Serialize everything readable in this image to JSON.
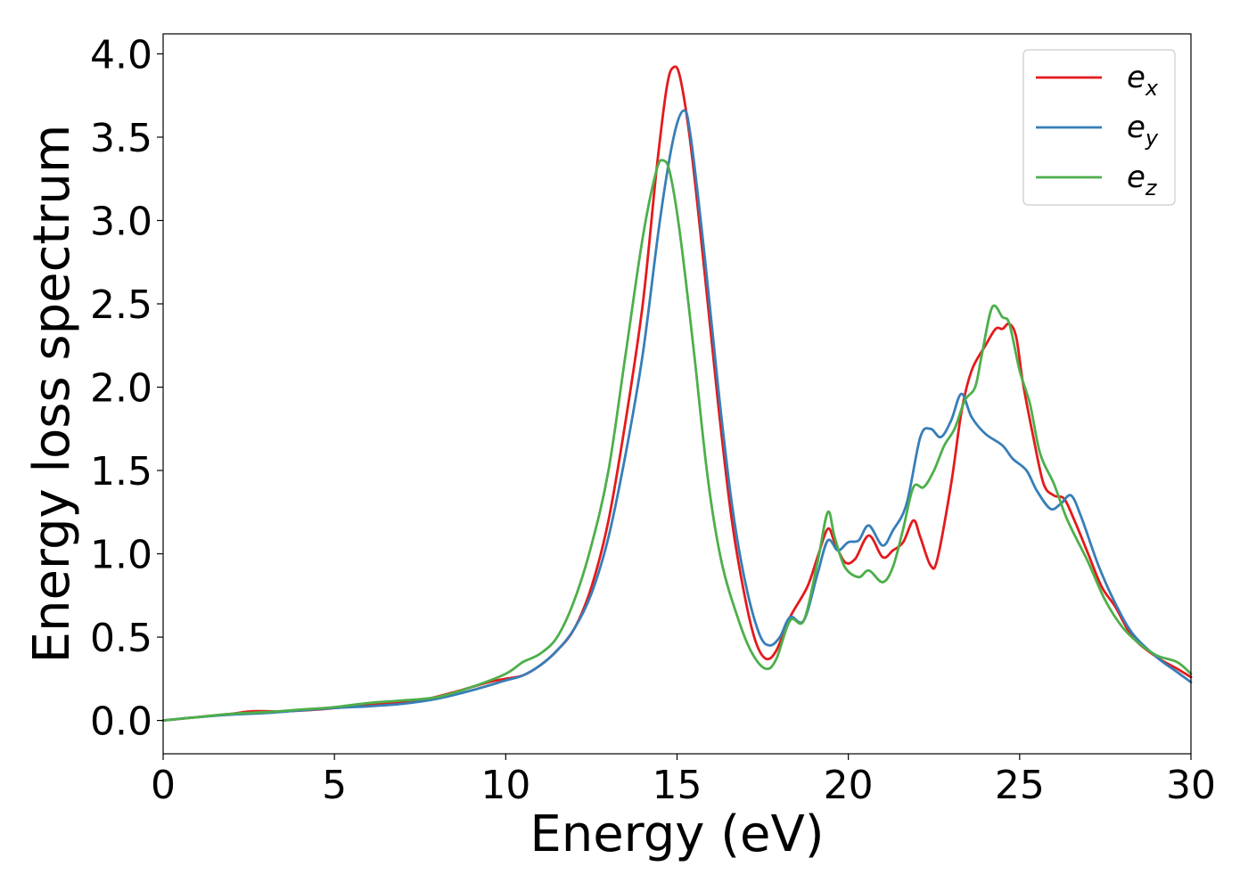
{
  "chart_data": {
    "type": "line",
    "title": "",
    "xlabel": "Energy (eV)",
    "ylabel": "Energy loss spectrum",
    "xlim": [
      0,
      30
    ],
    "ylim": [
      -0.2,
      4.12
    ],
    "xticks": [
      0,
      5,
      10,
      15,
      20,
      25,
      30
    ],
    "yticks": [
      0.0,
      0.5,
      1.0,
      1.5,
      2.0,
      2.5,
      3.0,
      3.5,
      4.0
    ],
    "xtick_labels": [
      "0",
      "5",
      "10",
      "15",
      "20",
      "25",
      "30"
    ],
    "ytick_labels": [
      "0.0",
      "0.5",
      "1.0",
      "1.5",
      "2.0",
      "2.5",
      "3.0",
      "3.5",
      "4.0"
    ],
    "grid": false,
    "legend_position": "top-right",
    "series": [
      {
        "name": "e_x",
        "base": "e",
        "sub": "x",
        "color": "#e41a1c",
        "points": [
          [
            0,
            0
          ],
          [
            1,
            0.02
          ],
          [
            2,
            0.04
          ],
          [
            2.6,
            0.055
          ],
          [
            3.5,
            0.055
          ],
          [
            4.5,
            0.065
          ],
          [
            5.5,
            0.085
          ],
          [
            6.5,
            0.1
          ],
          [
            7.5,
            0.12
          ],
          [
            8.5,
            0.17
          ],
          [
            9.5,
            0.23
          ],
          [
            10,
            0.25
          ],
          [
            10.5,
            0.27
          ],
          [
            11,
            0.33
          ],
          [
            11.5,
            0.42
          ],
          [
            12,
            0.55
          ],
          [
            12.5,
            0.8
          ],
          [
            13,
            1.2
          ],
          [
            13.5,
            1.8
          ],
          [
            14,
            2.5
          ],
          [
            14.4,
            3.3
          ],
          [
            14.7,
            3.8
          ],
          [
            14.9,
            3.92
          ],
          [
            15.1,
            3.85
          ],
          [
            15.4,
            3.45
          ],
          [
            15.8,
            2.7
          ],
          [
            16.2,
            1.9
          ],
          [
            16.6,
            1.2
          ],
          [
            17,
            0.72
          ],
          [
            17.3,
            0.47
          ],
          [
            17.6,
            0.37
          ],
          [
            17.9,
            0.42
          ],
          [
            18.3,
            0.62
          ],
          [
            18.8,
            0.8
          ],
          [
            19.1,
            0.98
          ],
          [
            19.4,
            1.15
          ],
          [
            19.6,
            1.07
          ],
          [
            19.9,
            0.95
          ],
          [
            20.2,
            0.97
          ],
          [
            20.6,
            1.11
          ],
          [
            21,
            0.98
          ],
          [
            21.3,
            1.02
          ],
          [
            21.6,
            1.07
          ],
          [
            21.9,
            1.2
          ],
          [
            22.1,
            1.1
          ],
          [
            22.4,
            0.93
          ],
          [
            22.6,
            0.97
          ],
          [
            23,
            1.42
          ],
          [
            23.3,
            1.85
          ],
          [
            23.6,
            2.1
          ],
          [
            24,
            2.25
          ],
          [
            24.3,
            2.35
          ],
          [
            24.5,
            2.35
          ],
          [
            24.7,
            2.38
          ],
          [
            24.9,
            2.3
          ],
          [
            25.1,
            2.02
          ],
          [
            25.4,
            1.7
          ],
          [
            25.7,
            1.42
          ],
          [
            26,
            1.35
          ],
          [
            26.3,
            1.33
          ],
          [
            26.6,
            1.2
          ],
          [
            27,
            1.0
          ],
          [
            27.4,
            0.8
          ],
          [
            27.8,
            0.68
          ],
          [
            28.3,
            0.5
          ],
          [
            29,
            0.38
          ],
          [
            29.6,
            0.31
          ],
          [
            30,
            0.26
          ]
        ]
      },
      {
        "name": "e_y",
        "base": "e",
        "sub": "y",
        "color": "#377eb8",
        "points": [
          [
            0,
            0
          ],
          [
            1,
            0.02
          ],
          [
            2,
            0.035
          ],
          [
            3,
            0.045
          ],
          [
            4,
            0.06
          ],
          [
            5,
            0.075
          ],
          [
            6,
            0.085
          ],
          [
            7,
            0.1
          ],
          [
            8,
            0.13
          ],
          [
            9,
            0.18
          ],
          [
            10,
            0.24
          ],
          [
            10.5,
            0.27
          ],
          [
            11,
            0.33
          ],
          [
            11.5,
            0.42
          ],
          [
            12,
            0.55
          ],
          [
            12.5,
            0.76
          ],
          [
            13,
            1.1
          ],
          [
            13.5,
            1.6
          ],
          [
            14,
            2.2
          ],
          [
            14.5,
            3.0
          ],
          [
            14.9,
            3.5
          ],
          [
            15.2,
            3.66
          ],
          [
            15.4,
            3.5
          ],
          [
            15.8,
            2.8
          ],
          [
            16.2,
            2.0
          ],
          [
            16.6,
            1.3
          ],
          [
            17,
            0.82
          ],
          [
            17.4,
            0.52
          ],
          [
            17.7,
            0.45
          ],
          [
            18,
            0.5
          ],
          [
            18.3,
            0.62
          ],
          [
            18.7,
            0.6
          ],
          [
            19.1,
            0.88
          ],
          [
            19.4,
            1.08
          ],
          [
            19.7,
            1.02
          ],
          [
            20,
            1.07
          ],
          [
            20.3,
            1.08
          ],
          [
            20.6,
            1.17
          ],
          [
            21,
            1.05
          ],
          [
            21.3,
            1.14
          ],
          [
            21.7,
            1.3
          ],
          [
            22.1,
            1.7
          ],
          [
            22.4,
            1.75
          ],
          [
            22.7,
            1.7
          ],
          [
            23,
            1.8
          ],
          [
            23.3,
            1.96
          ],
          [
            23.6,
            1.82
          ],
          [
            24,
            1.72
          ],
          [
            24.5,
            1.65
          ],
          [
            24.8,
            1.57
          ],
          [
            25.2,
            1.5
          ],
          [
            25.5,
            1.38
          ],
          [
            25.9,
            1.27
          ],
          [
            26.2,
            1.3
          ],
          [
            26.5,
            1.35
          ],
          [
            26.8,
            1.22
          ],
          [
            27.3,
            0.93
          ],
          [
            27.8,
            0.7
          ],
          [
            28.3,
            0.52
          ],
          [
            29,
            0.38
          ],
          [
            29.6,
            0.29
          ],
          [
            30,
            0.23
          ]
        ]
      },
      {
        "name": "e_z",
        "base": "e",
        "sub": "z",
        "color": "#4daf4a",
        "points": [
          [
            0,
            0
          ],
          [
            1,
            0.02
          ],
          [
            2,
            0.04
          ],
          [
            3,
            0.05
          ],
          [
            4,
            0.065
          ],
          [
            5,
            0.08
          ],
          [
            6,
            0.105
          ],
          [
            7,
            0.12
          ],
          [
            8,
            0.14
          ],
          [
            9,
            0.2
          ],
          [
            10,
            0.28
          ],
          [
            10.5,
            0.35
          ],
          [
            11,
            0.4
          ],
          [
            11.5,
            0.5
          ],
          [
            12,
            0.72
          ],
          [
            12.5,
            1.05
          ],
          [
            13,
            1.5
          ],
          [
            13.5,
            2.2
          ],
          [
            14,
            2.9
          ],
          [
            14.4,
            3.3
          ],
          [
            14.6,
            3.36
          ],
          [
            14.8,
            3.28
          ],
          [
            15.1,
            2.9
          ],
          [
            15.5,
            2.2
          ],
          [
            15.9,
            1.45
          ],
          [
            16.3,
            0.95
          ],
          [
            16.8,
            0.6
          ],
          [
            17.2,
            0.4
          ],
          [
            17.6,
            0.31
          ],
          [
            17.9,
            0.37
          ],
          [
            18.3,
            0.6
          ],
          [
            18.7,
            0.6
          ],
          [
            19.1,
            0.95
          ],
          [
            19.4,
            1.25
          ],
          [
            19.6,
            1.1
          ],
          [
            19.9,
            0.92
          ],
          [
            20.3,
            0.86
          ],
          [
            20.6,
            0.9
          ],
          [
            21,
            0.83
          ],
          [
            21.3,
            0.92
          ],
          [
            21.6,
            1.15
          ],
          [
            21.9,
            1.4
          ],
          [
            22.2,
            1.4
          ],
          [
            22.5,
            1.5
          ],
          [
            22.8,
            1.65
          ],
          [
            23.1,
            1.75
          ],
          [
            23.4,
            1.92
          ],
          [
            23.7,
            2.0
          ],
          [
            23.9,
            2.2
          ],
          [
            24.2,
            2.48
          ],
          [
            24.5,
            2.42
          ],
          [
            24.7,
            2.38
          ],
          [
            25,
            2.1
          ],
          [
            25.3,
            1.9
          ],
          [
            25.6,
            1.6
          ],
          [
            26,
            1.42
          ],
          [
            26.4,
            1.2
          ],
          [
            27,
            0.95
          ],
          [
            27.5,
            0.72
          ],
          [
            28,
            0.56
          ],
          [
            28.5,
            0.46
          ],
          [
            29,
            0.39
          ],
          [
            29.6,
            0.35
          ],
          [
            30,
            0.28
          ]
        ]
      }
    ]
  }
}
